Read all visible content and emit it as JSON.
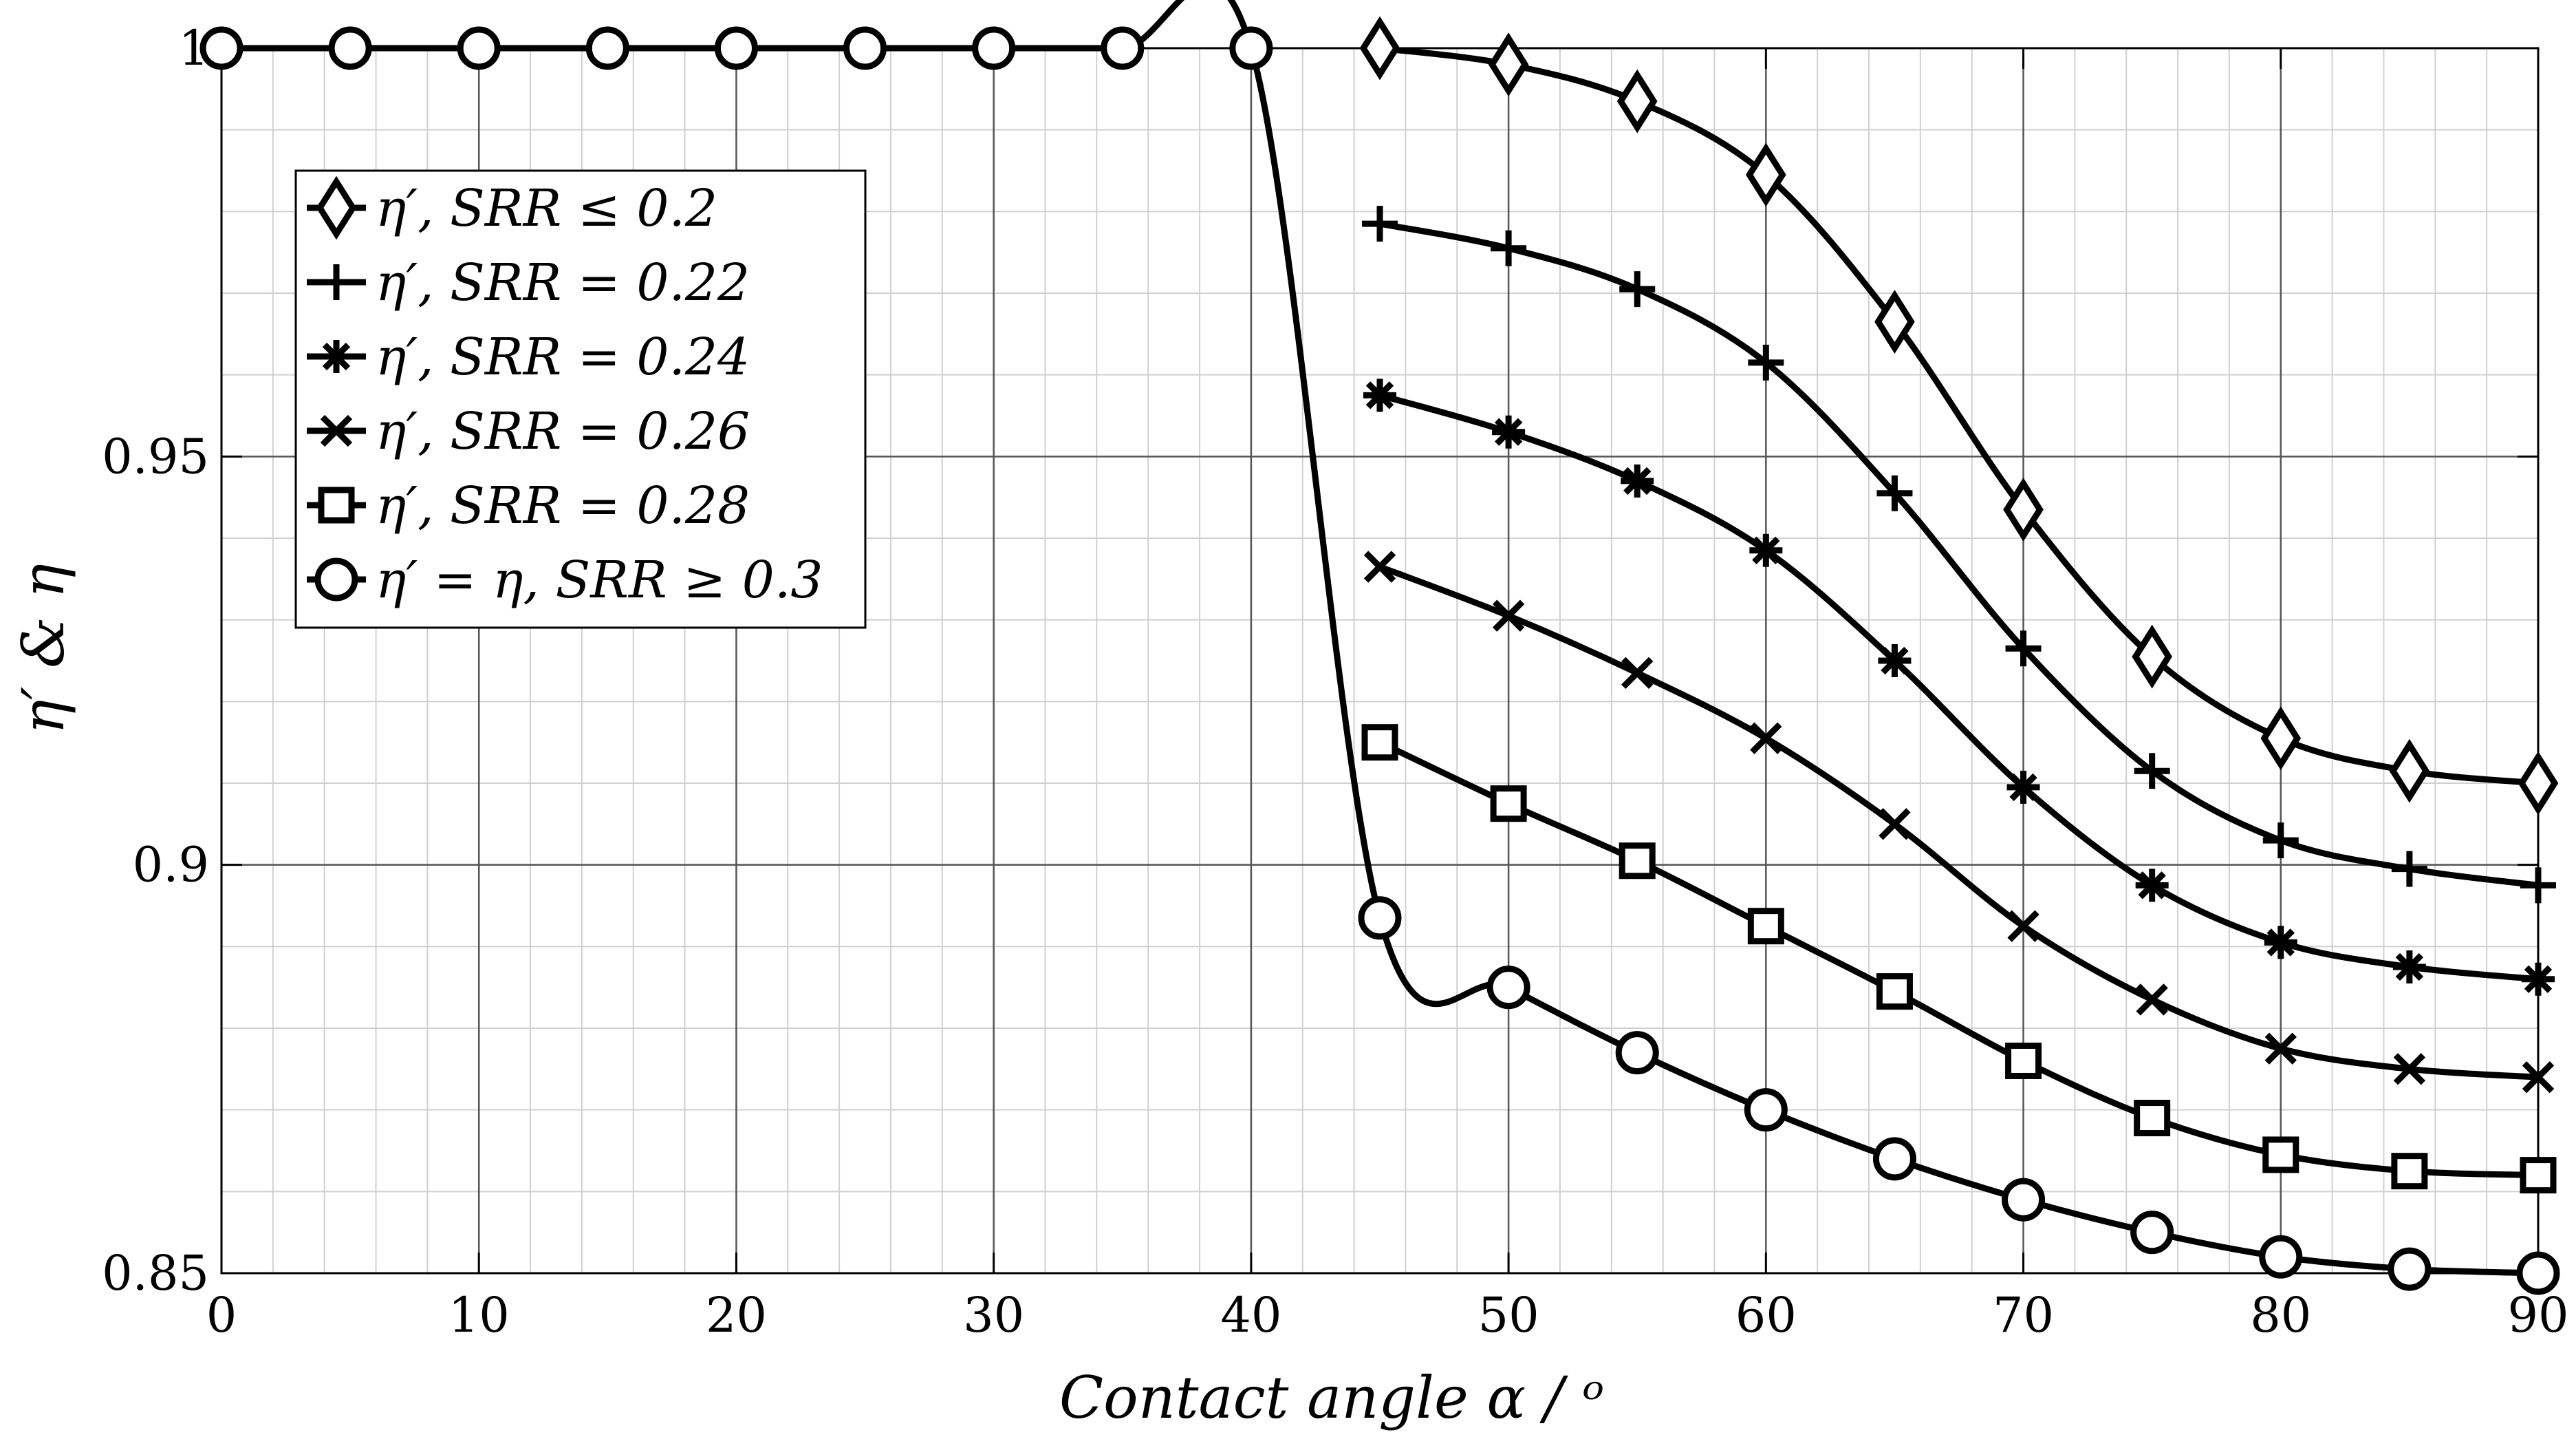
{
  "chart_data": {
    "type": "line",
    "title": "",
    "xlabel": "Contact angle α / ᵒ",
    "ylabel": "η′ & η",
    "xlim": [
      0,
      90
    ],
    "ylim": [
      0.85,
      1.0
    ],
    "x_ticks": [
      0,
      10,
      20,
      30,
      40,
      50,
      60,
      70,
      80,
      90
    ],
    "x_tick_labels": [
      "0",
      "10",
      "20",
      "30",
      "40",
      "50",
      "60",
      "70",
      "80",
      "90"
    ],
    "y_ticks": [
      0.85,
      0.9,
      0.95,
      1.0
    ],
    "y_tick_labels": [
      "0.85",
      "0.9",
      "0.95",
      "1"
    ],
    "grid": true,
    "minor_grid": true,
    "legend_position": "upper-left",
    "series": [
      {
        "name": "η′, SRR ≤ 0.2",
        "marker": "diamond",
        "x": [
          45,
          50,
          55,
          60,
          65,
          70,
          75,
          80,
          85,
          90
        ],
        "y": [
          1.0,
          0.998,
          0.9935,
          0.9845,
          0.9665,
          0.9435,
          0.9255,
          0.9155,
          0.9115,
          0.91
        ]
      },
      {
        "name": "η′, SRR = 0.22",
        "marker": "plus",
        "x": [
          45,
          50,
          55,
          60,
          65,
          70,
          75,
          80,
          85,
          90
        ],
        "y": [
          0.9785,
          0.9755,
          0.9705,
          0.9615,
          0.9455,
          0.9265,
          0.9115,
          0.903,
          0.8995,
          0.8975
        ]
      },
      {
        "name": "η′, SRR = 0.24",
        "marker": "asterisk",
        "x": [
          45,
          50,
          55,
          60,
          65,
          70,
          75,
          80,
          85,
          90
        ],
        "y": [
          0.9575,
          0.953,
          0.947,
          0.9385,
          0.925,
          0.9095,
          0.8975,
          0.8905,
          0.8875,
          0.886
        ]
      },
      {
        "name": "η′, SRR = 0.26",
        "marker": "x",
        "x": [
          45,
          50,
          55,
          60,
          65,
          70,
          75,
          80,
          85,
          90
        ],
        "y": [
          0.9365,
          0.9305,
          0.9235,
          0.9155,
          0.905,
          0.8925,
          0.8835,
          0.8775,
          0.875,
          0.874
        ]
      },
      {
        "name": "η′, SRR = 0.28",
        "marker": "square",
        "x": [
          45,
          50,
          55,
          60,
          65,
          70,
          75,
          80,
          85,
          90
        ],
        "y": [
          0.915,
          0.9075,
          0.9005,
          0.8925,
          0.8845,
          0.876,
          0.869,
          0.8645,
          0.8625,
          0.862
        ]
      },
      {
        "name": "η′ = η, SRR ≥ 0.3",
        "marker": "circle",
        "x": [
          0,
          5,
          10,
          15,
          20,
          25,
          30,
          35,
          40,
          45,
          50,
          55,
          60,
          65,
          70,
          75,
          80,
          85,
          90
        ],
        "y": [
          1.0,
          1.0,
          1.0,
          1.0,
          1.0,
          1.0,
          1.0,
          1.0,
          1.0,
          0.8935,
          0.885,
          0.877,
          0.87,
          0.864,
          0.859,
          0.855,
          0.852,
          0.8505,
          0.85
        ]
      }
    ]
  }
}
